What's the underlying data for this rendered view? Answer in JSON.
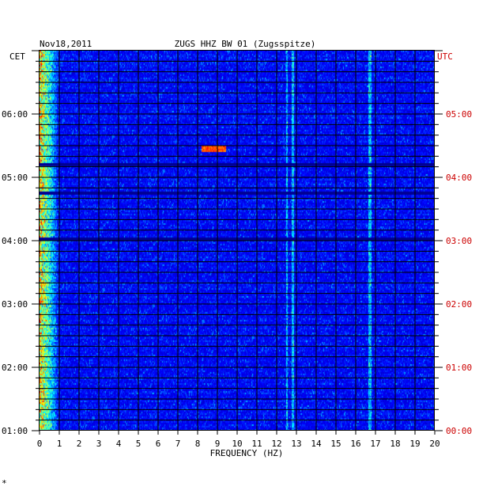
{
  "chart_data": {
    "type": "heatmap",
    "date": "Nov18,2011",
    "title": "ZUGS HHZ BW 01 (Zugsspitze)",
    "left_label": "CET",
    "right_label": "UTC",
    "xlabel": "FREQUENCY (HZ)",
    "xlim": [
      0,
      20
    ],
    "x_ticks": [
      "0",
      "1",
      "2",
      "3",
      "4",
      "5",
      "6",
      "7",
      "8",
      "9",
      "10",
      "11",
      "12",
      "13",
      "14",
      "15",
      "16",
      "17",
      "18",
      "19",
      "20"
    ],
    "y_ticks_cet": [
      "06:00",
      "05:00",
      "04:00",
      "03:00",
      "02:00",
      "01:00"
    ],
    "y_ticks_utc": [
      "05:00",
      "04:00",
      "03:00",
      "02:00",
      "01:00",
      "00:00"
    ],
    "y_tick_hours_utc": [
      5,
      4,
      3,
      2,
      1,
      0
    ],
    "ylim_utc_hours": [
      0,
      6
    ],
    "colormap": [
      "#000080",
      "#0000ff",
      "#00ffff",
      "#ffff00",
      "#ff0000"
    ],
    "features": [
      {
        "desc": "strong low-frequency energy",
        "freq_range": [
          0,
          1
        ],
        "intensity": "high"
      },
      {
        "desc": "narrow band spectral line",
        "freq": 12.5,
        "intensity": "medium"
      },
      {
        "desc": "narrow band spectral line",
        "freq": 12.8,
        "intensity": "medium"
      },
      {
        "desc": "narrow band spectral line",
        "freq": 16.7,
        "intensity": "medium"
      },
      {
        "desc": "transient burst",
        "freq_range": [
          8.2,
          9.4
        ],
        "time_utc_hours": 4.45,
        "intensity": "high"
      },
      {
        "desc": "data gap",
        "time_utc_hours": 3.02
      },
      {
        "desc": "data gap",
        "time_utc_hours": 3.75
      },
      {
        "desc": "data gap",
        "time_utc_hours": 4.2
      }
    ]
  },
  "colors": {
    "utc_text": "#cc0000",
    "text": "#000000",
    "grid": "#000000"
  },
  "corner_mark": "*"
}
